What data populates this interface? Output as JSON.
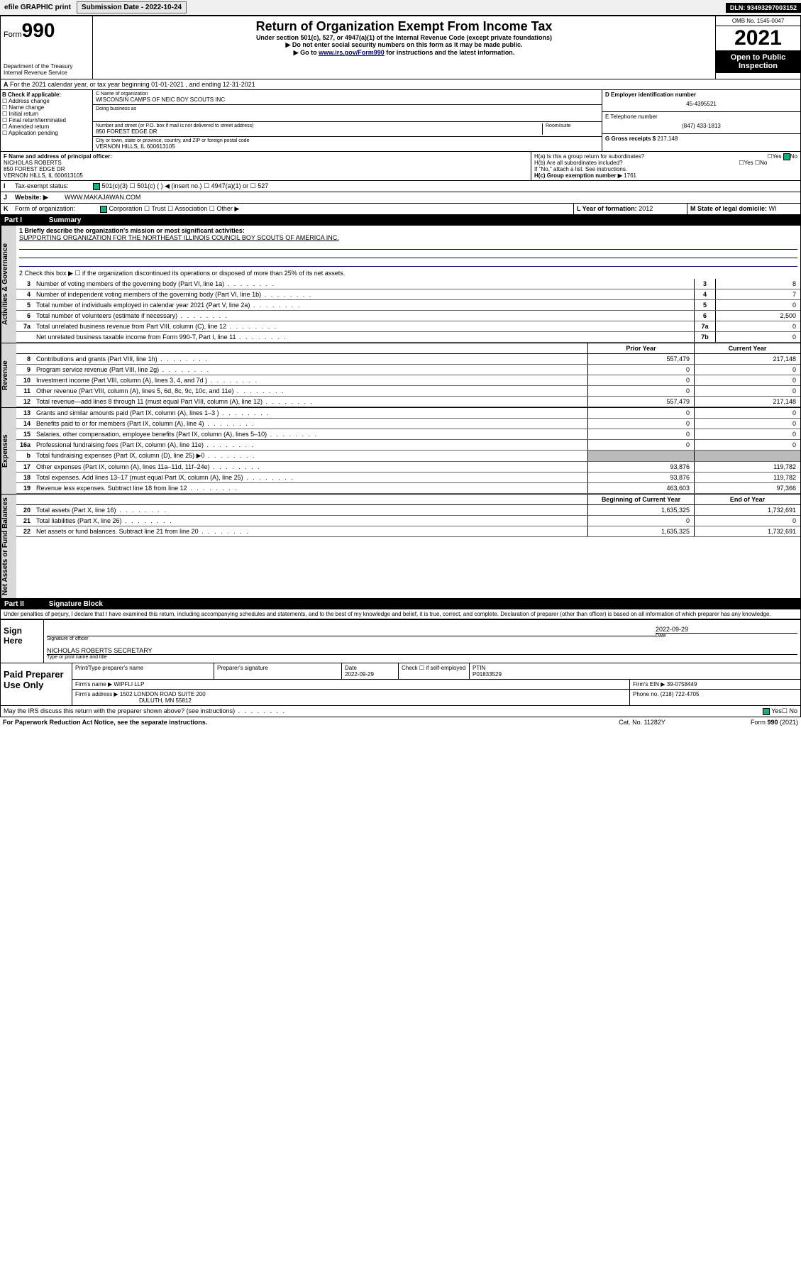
{
  "topbar": {
    "efile": "efile GRAPHIC print",
    "sub_label": "Submission Date - 2022-10-24",
    "dln": "DLN: 93493297003152"
  },
  "header": {
    "form_word": "Form",
    "form_num": "990",
    "dept": "Department of the Treasury",
    "irs": "Internal Revenue Service",
    "title": "Return of Organization Exempt From Income Tax",
    "sub": "Under section 501(c), 527, or 4947(a)(1) of the Internal Revenue Code (except private foundations)",
    "warn": "▶ Do not enter social security numbers on this form as it may be made public.",
    "instr_pre": "▶ Go to ",
    "instr_link": "www.irs.gov/Form990",
    "instr_post": " for instructions and the latest information.",
    "omb": "OMB No. 1545-0047",
    "year": "2021",
    "open": "Open to Public Inspection"
  },
  "lineA": "For the 2021 calendar year, or tax year beginning 01-01-2021   , and ending 12-31-2021",
  "boxB": {
    "label": "B Check if applicable:",
    "items": [
      "Address change",
      "Name change",
      "Initial return",
      "Final return/terminated",
      "Amended return",
      "Application pending"
    ]
  },
  "boxC": {
    "name_lab": "C Name of organization",
    "name": "WISCONSIN CAMPS OF NEIC BOY SCOUTS INC",
    "dba_lab": "Doing business as",
    "addr_lab": "Number and street (or P.O. box if mail is not delivered to street address)",
    "room_lab": "Room/suite",
    "addr": "850 FOREST EDGE DR",
    "city_lab": "City or town, state or province, country, and ZIP or foreign postal code",
    "city": "VERNON HILLS, IL  600613105"
  },
  "boxD": {
    "ein_lab": "D Employer identification number",
    "ein": "45-4395521",
    "tel_lab": "E Telephone number",
    "tel": "(847) 433-1813",
    "gross_lab": "G Gross receipts $",
    "gross": "217,148"
  },
  "boxF": {
    "lab": "F Name and address of principal officer:",
    "name": "NICHOLAS ROBERTS",
    "addr1": "850 FOREST EDGE DR",
    "addr2": "VERNON HILLS, IL  600613105"
  },
  "boxH": {
    "a": "H(a)  Is this a group return for subordinates?",
    "b": "H(b)  Are all subordinates included?",
    "note": "If \"No,\" attach a list. See instructions.",
    "c_lab": "H(c)  Group exemption number ▶",
    "c_val": "1761",
    "yes": "Yes",
    "no": "No"
  },
  "lineI": {
    "lab": "I",
    "txt": "Tax-exempt status:",
    "opts": [
      "501(c)(3)",
      "501(c) (  ) ◀ (insert no.)",
      "4947(a)(1) or",
      "527"
    ]
  },
  "lineJ": {
    "lab": "J",
    "txt": "Website: ▶",
    "val": "WWW.MAKAJAWAN.COM"
  },
  "lineK": {
    "lab": "K",
    "txt": "Form of organization:",
    "opts": [
      "Corporation",
      "Trust",
      "Association",
      "Other ▶"
    ]
  },
  "lineL": {
    "lab": "L Year of formation:",
    "val": "2012"
  },
  "lineM": {
    "lab": "M State of legal domicile:",
    "val": "WI"
  },
  "part1": {
    "num": "Part I",
    "title": "Summary"
  },
  "mission_lab": "1  Briefly describe the organization's mission or most significant activities:",
  "mission": "SUPPORTING ORGANIZATION FOR THE NORTHEAST ILLINOIS COUNCIL BOY SCOUTS OF AMERICA INC.",
  "line2": "2   Check this box ▶ ☐  if the organization discontinued its operations or disposed of more than 25% of its net assets.",
  "gov_rows": [
    {
      "n": "3",
      "t": "Number of voting members of the governing body (Part VI, line 1a)",
      "b": "3",
      "v": "8"
    },
    {
      "n": "4",
      "t": "Number of independent voting members of the governing body (Part VI, line 1b)",
      "b": "4",
      "v": "7"
    },
    {
      "n": "5",
      "t": "Total number of individuals employed in calendar year 2021 (Part V, line 2a)",
      "b": "5",
      "v": "0"
    },
    {
      "n": "6",
      "t": "Total number of volunteers (estimate if necessary)",
      "b": "6",
      "v": "2,500"
    },
    {
      "n": "7a",
      "t": "Total unrelated business revenue from Part VIII, column (C), line 12",
      "b": "7a",
      "v": "0"
    },
    {
      "n": "",
      "t": "Net unrelated business taxable income from Form 990-T, Part I, line 11",
      "b": "7b",
      "v": "0"
    }
  ],
  "col_hdr": {
    "prior": "Prior Year",
    "curr": "Current Year",
    "beg": "Beginning of Current Year",
    "end": "End of Year"
  },
  "rev_rows": [
    {
      "n": "8",
      "t": "Contributions and grants (Part VIII, line 1h)",
      "p": "557,479",
      "c": "217,148"
    },
    {
      "n": "9",
      "t": "Program service revenue (Part VIII, line 2g)",
      "p": "0",
      "c": "0"
    },
    {
      "n": "10",
      "t": "Investment income (Part VIII, column (A), lines 3, 4, and 7d )",
      "p": "0",
      "c": "0"
    },
    {
      "n": "11",
      "t": "Other revenue (Part VIII, column (A), lines 5, 6d, 8c, 9c, 10c, and 11e)",
      "p": "0",
      "c": "0"
    },
    {
      "n": "12",
      "t": "Total revenue—add lines 8 through 11 (must equal Part VIII, column (A), line 12)",
      "p": "557,479",
      "c": "217,148"
    }
  ],
  "exp_rows": [
    {
      "n": "13",
      "t": "Grants and similar amounts paid (Part IX, column (A), lines 1–3 )",
      "p": "0",
      "c": "0"
    },
    {
      "n": "14",
      "t": "Benefits paid to or for members (Part IX, column (A), line 4)",
      "p": "0",
      "c": "0"
    },
    {
      "n": "15",
      "t": "Salaries, other compensation, employee benefits (Part IX, column (A), lines 5–10)",
      "p": "0",
      "c": "0"
    },
    {
      "n": "16a",
      "t": "Professional fundraising fees (Part IX, column (A), line 11e)",
      "p": "0",
      "c": "0"
    },
    {
      "n": "b",
      "t": "Total fundraising expenses (Part IX, column (D), line 25) ▶0",
      "p": "",
      "c": "",
      "shade": true
    },
    {
      "n": "17",
      "t": "Other expenses (Part IX, column (A), lines 11a–11d, 11f–24e)",
      "p": "93,876",
      "c": "119,782"
    },
    {
      "n": "18",
      "t": "Total expenses. Add lines 13–17 (must equal Part IX, column (A), line 25)",
      "p": "93,876",
      "c": "119,782"
    },
    {
      "n": "19",
      "t": "Revenue less expenses. Subtract line 18 from line 12",
      "p": "463,603",
      "c": "97,366"
    }
  ],
  "net_rows": [
    {
      "n": "20",
      "t": "Total assets (Part X, line 16)",
      "p": "1,635,325",
      "c": "1,732,691"
    },
    {
      "n": "21",
      "t": "Total liabilities (Part X, line 26)",
      "p": "0",
      "c": "0"
    },
    {
      "n": "22",
      "t": "Net assets or fund balances. Subtract line 21 from line 20",
      "p": "1,635,325",
      "c": "1,732,691"
    }
  ],
  "vtabs": {
    "gov": "Activities & Governance",
    "rev": "Revenue",
    "exp": "Expenses",
    "net": "Net Assets or Fund Balances"
  },
  "part2": {
    "num": "Part II",
    "title": "Signature Block"
  },
  "penalty": "Under penalties of perjury, I declare that I have examined this return, including accompanying schedules and statements, and to the best of my knowledge and belief, it is true, correct, and complete. Declaration of preparer (other than officer) is based on all information of which preparer has any knowledge.",
  "sign": {
    "here": "Sign Here",
    "sig_lab": "Signature of officer",
    "date_lab": "Date",
    "date": "2022-09-29",
    "name": "NICHOLAS ROBERTS  SECRETARY",
    "name_lab": "Type or print name and title"
  },
  "paid": {
    "title": "Paid Preparer Use Only",
    "h": [
      "Print/Type preparer's name",
      "Preparer's signature",
      "Date",
      "Check ☐ if self-employed",
      "PTIN"
    ],
    "date": "2022-09-29",
    "ptin": "P01833529",
    "firm_lab": "Firm's name     ▶",
    "firm": "WIPFLI LLP",
    "ein_lab": "Firm's EIN ▶",
    "ein": "39-0758449",
    "addr_lab": "Firm's address ▶",
    "addr1": "1502 LONDON ROAD SUITE 200",
    "addr2": "DULUTH, MN  55812",
    "ph_lab": "Phone no.",
    "ph": "(218) 722-4705"
  },
  "discuss": "May the IRS discuss this return with the preparer shown above? (see instructions)",
  "footer": {
    "pra": "For Paperwork Reduction Act Notice, see the separate instructions.",
    "cat": "Cat. No. 11282Y",
    "form": "Form 990 (2021)"
  }
}
